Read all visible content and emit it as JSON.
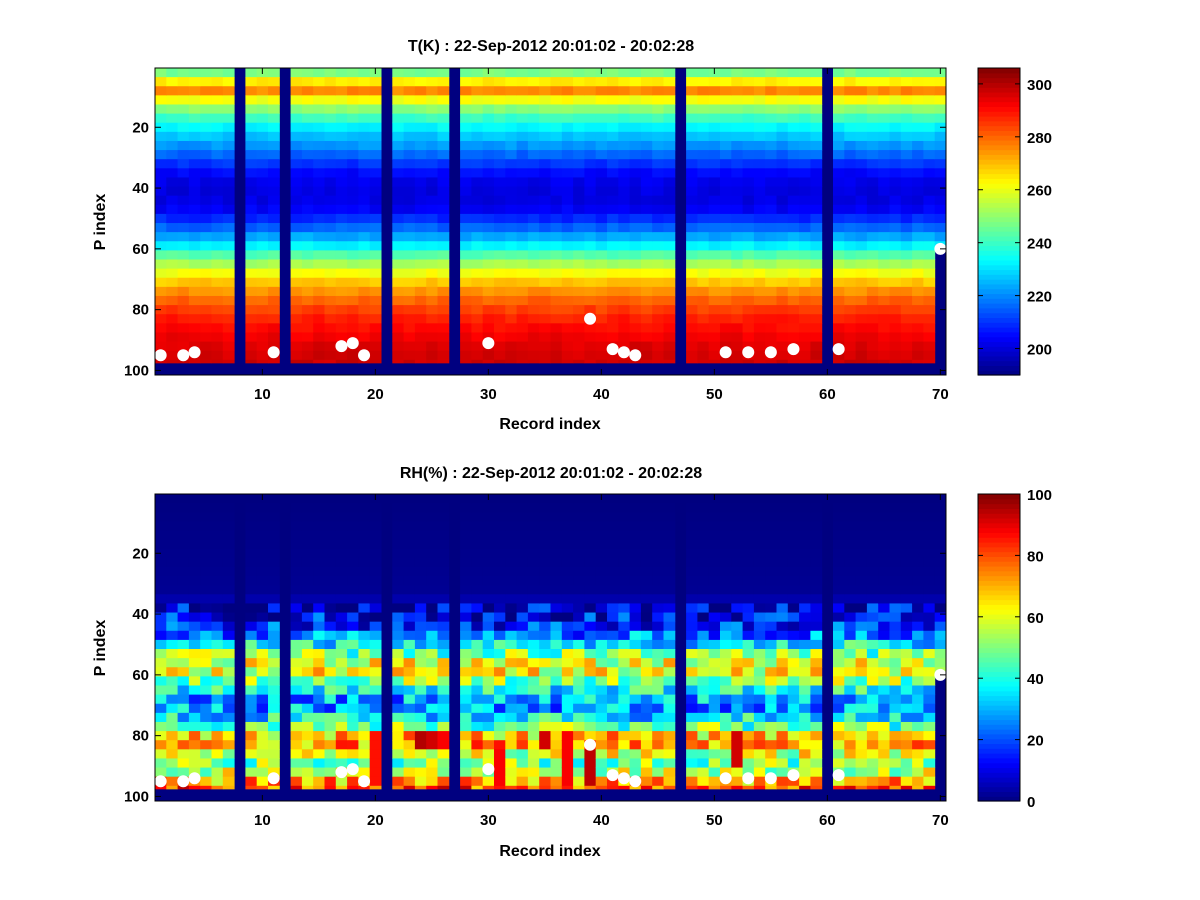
{
  "chart_data": [
    {
      "type": "heatmap",
      "title": "T(K) : 22-Sep-2012 20:01:02 - 20:02:28",
      "xlabel": "Record index",
      "ylabel": "P index",
      "xlim": [
        0.5,
        70.5
      ],
      "ylim": [
        0.5,
        101.5
      ],
      "y_reversed": true,
      "xticks": [
        10,
        20,
        30,
        40,
        50,
        60,
        70
      ],
      "yticks": [
        20,
        40,
        60,
        80,
        100
      ],
      "colormap": "jet",
      "color_range": [
        190,
        306
      ],
      "colorbar_ticks": [
        200,
        220,
        240,
        260,
        280,
        300
      ],
      "missing_records": [
        8,
        12,
        21,
        27,
        47,
        60
      ],
      "bottom_fill_from_p_index": 98,
      "surface_markers": [
        {
          "record": 1,
          "p_index": 95
        },
        {
          "record": 3,
          "p_index": 95
        },
        {
          "record": 4,
          "p_index": 94
        },
        {
          "record": 11,
          "p_index": 94
        },
        {
          "record": 17,
          "p_index": 92
        },
        {
          "record": 18,
          "p_index": 91
        },
        {
          "record": 19,
          "p_index": 95
        },
        {
          "record": 30,
          "p_index": 91
        },
        {
          "record": 39,
          "p_index": 83
        },
        {
          "record": 41,
          "p_index": 93
        },
        {
          "record": 42,
          "p_index": 94
        },
        {
          "record": 43,
          "p_index": 95
        },
        {
          "record": 51,
          "p_index": 94
        },
        {
          "record": 53,
          "p_index": 94
        },
        {
          "record": 55,
          "p_index": 94
        },
        {
          "record": 57,
          "p_index": 93
        },
        {
          "record": 61,
          "p_index": 93
        },
        {
          "record": 70,
          "p_index": 60
        }
      ],
      "profile_p_index": [
        1,
        5,
        9,
        12,
        16,
        20,
        24,
        28,
        32,
        36,
        40,
        44,
        48,
        52,
        56,
        60,
        64,
        68,
        72,
        76,
        80,
        84,
        88,
        92,
        97
      ],
      "profile_values": [
        238,
        262,
        278,
        258,
        244,
        234,
        226,
        219,
        211,
        204,
        201,
        201,
        204,
        212,
        222,
        234,
        248,
        260,
        270,
        278,
        284,
        289,
        292,
        295,
        297
      ]
    },
    {
      "type": "heatmap",
      "title": "RH(%) : 22-Sep-2012 20:01:02 - 20:02:28",
      "xlabel": "Record index",
      "ylabel": "P index",
      "xlim": [
        0.5,
        70.5
      ],
      "ylim": [
        0.5,
        101.5
      ],
      "y_reversed": true,
      "xticks": [
        10,
        20,
        30,
        40,
        50,
        60,
        70
      ],
      "yticks": [
        20,
        40,
        60,
        80,
        100
      ],
      "colormap": "jet",
      "color_range": [
        0,
        100
      ],
      "colorbar_ticks": [
        0,
        20,
        40,
        60,
        80,
        100
      ],
      "missing_records": [
        8,
        12,
        21,
        27,
        47,
        60
      ],
      "bottom_fill_from_p_index": 98,
      "surface_markers": [
        {
          "record": 1,
          "p_index": 95
        },
        {
          "record": 3,
          "p_index": 95
        },
        {
          "record": 4,
          "p_index": 94
        },
        {
          "record": 11,
          "p_index": 94
        },
        {
          "record": 17,
          "p_index": 92
        },
        {
          "record": 18,
          "p_index": 91
        },
        {
          "record": 19,
          "p_index": 95
        },
        {
          "record": 30,
          "p_index": 91
        },
        {
          "record": 39,
          "p_index": 83
        },
        {
          "record": 41,
          "p_index": 93
        },
        {
          "record": 42,
          "p_index": 94
        },
        {
          "record": 43,
          "p_index": 95
        },
        {
          "record": 51,
          "p_index": 94
        },
        {
          "record": 53,
          "p_index": 94
        },
        {
          "record": 55,
          "p_index": 94
        },
        {
          "record": 57,
          "p_index": 93
        },
        {
          "record": 61,
          "p_index": 93
        },
        {
          "record": 70,
          "p_index": 60
        }
      ],
      "profile_p_index": [
        1,
        34,
        38,
        44,
        48,
        52,
        55,
        58,
        61,
        64,
        67,
        70,
        74,
        78,
        81,
        84,
        87,
        90,
        94,
        97
      ],
      "profile_values": [
        0,
        2,
        8,
        16,
        26,
        42,
        56,
        63,
        58,
        44,
        33,
        25,
        34,
        50,
        70,
        72,
        55,
        48,
        62,
        80
      ],
      "hotspots": [
        {
          "record": 24,
          "p_from": 79,
          "p_to": 86,
          "value": 95
        },
        {
          "record": 25,
          "p_from": 79,
          "p_to": 86,
          "value": 92
        },
        {
          "record": 26,
          "p_from": 80,
          "p_to": 84,
          "value": 88
        },
        {
          "record": 35,
          "p_from": 80,
          "p_to": 84,
          "value": 92
        },
        {
          "record": 37,
          "p_from": 80,
          "p_to": 97,
          "value": 88
        },
        {
          "record": 39,
          "p_from": 84,
          "p_to": 97,
          "value": 94
        },
        {
          "record": 52,
          "p_from": 80,
          "p_to": 92,
          "value": 92
        },
        {
          "record": 20,
          "p_from": 80,
          "p_to": 97,
          "value": 86
        },
        {
          "record": 31,
          "p_from": 84,
          "p_to": 97,
          "value": 88
        }
      ]
    }
  ]
}
